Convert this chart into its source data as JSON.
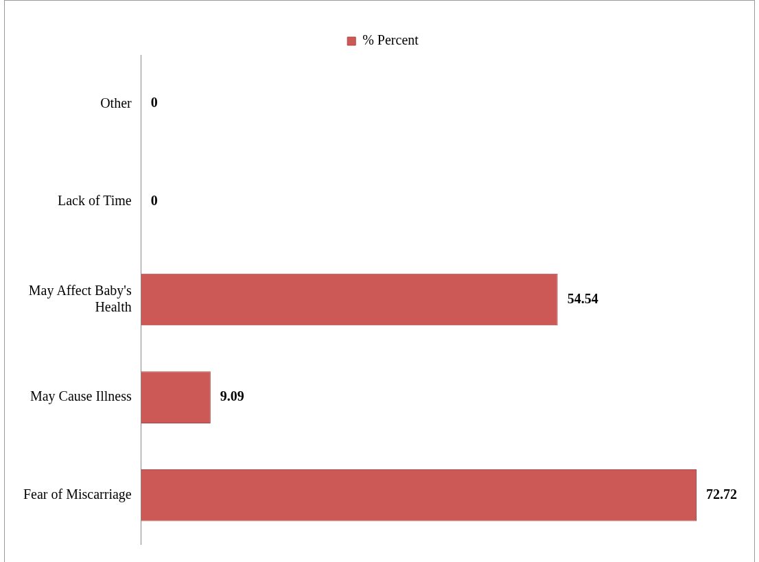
{
  "chart_data": {
    "type": "bar",
    "orientation": "horizontal",
    "categories": [
      "Other",
      "Lack of Time",
      "May Affect Baby's Health",
      "May Cause Illness",
      "Fear of Miscarriage"
    ],
    "series": [
      {
        "name": "% Percent",
        "color": "#cd5957",
        "values": [
          0,
          0,
          54.54,
          9.09,
          72.72
        ]
      }
    ],
    "xlim": [
      0,
      80
    ],
    "tick_labels": "y",
    "legend": "top",
    "data_labels": true
  }
}
